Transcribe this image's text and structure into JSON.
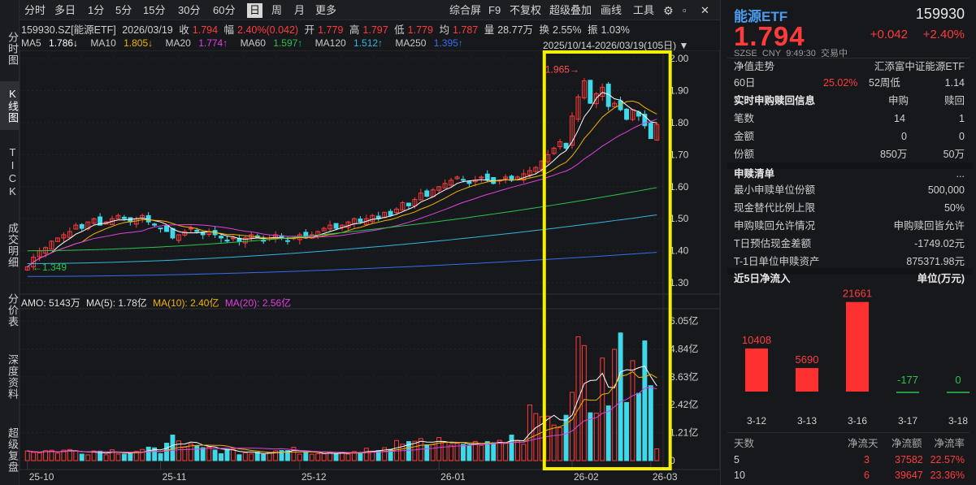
{
  "left_tabs": [
    "分时图",
    "K线图",
    "TICK",
    "成交明细",
    "分价表",
    "深度资料",
    "超级复盘"
  ],
  "toolbar": {
    "left": [
      "分时",
      "多日",
      "1分",
      "5分",
      "15分",
      "30分",
      "60分",
      "日",
      "周",
      "月",
      "更多"
    ],
    "right": [
      "综合屏",
      "F9",
      "不复权",
      "超级叠加",
      "画线",
      "工具"
    ],
    "selected": "日"
  },
  "quote_line": {
    "code": "159930.SZ[能源ETF]",
    "date": "2026/03/19",
    "close_label": "收",
    "close": "1.794",
    "change_label": "幅",
    "change": "2.40%(0.042)",
    "open_label": "开",
    "open": "1.779",
    "high_label": "高",
    "high": "1.797",
    "low_label": "低",
    "low": "1.779",
    "avg_label": "均",
    "avg": "1.787",
    "amount_label": "量",
    "amount": "28.77万",
    "turnover_label": "换",
    "turnover": "2.55%",
    "amplitude_label": "振",
    "amplitude": "1.03%"
  },
  "ma_line": [
    {
      "label": "MA5",
      "value": "1.786↓",
      "color": "#ffffff"
    },
    {
      "label": "MA10",
      "value": "1.805↓",
      "color": "#f0b400"
    },
    {
      "label": "MA20",
      "value": "1.774↑",
      "color": "#e040e0"
    },
    {
      "label": "MA60",
      "value": "1.597↑",
      "color": "#28c44c"
    },
    {
      "label": "MA120",
      "value": "1.512↑",
      "color": "#30b8d8"
    },
    {
      "label": "MA250",
      "value": "1.395↑",
      "color": "#3a6cf0"
    }
  ],
  "date_range": "2025/10/14-2026/03/19(105日)",
  "vol_line": {
    "amo": "AMO: 5143万",
    "ma5": "MA(5): 1.78亿",
    "ma10": "MA(10): 2.40亿",
    "ma20": "MA(20): 2.56亿"
  },
  "chart_data": [
    {
      "type": "candlestick",
      "title": "159930.SZ 能源ETF 日K",
      "x_axis_labels": [
        "25-10",
        "25-11",
        "25-12",
        "26-01",
        "26-02",
        "26-03"
      ],
      "y_axis_ticks": [
        "2.00",
        "1.90",
        "1.80",
        "1.70",
        "1.60",
        "1.50",
        "1.40",
        "1.30"
      ],
      "ylim": [
        1.27,
        2.02
      ],
      "annotations": {
        "high_marker": "1.965",
        "low_marker": "1.349"
      },
      "close_series": [
        1.35,
        1.38,
        1.4,
        1.41,
        1.43,
        1.44,
        1.45,
        1.46,
        1.48,
        1.47,
        1.49,
        1.5,
        1.48,
        1.49,
        1.5,
        1.51,
        1.5,
        1.49,
        1.5,
        1.51,
        1.49,
        1.48,
        1.47,
        1.46,
        1.44,
        1.45,
        1.46,
        1.47,
        1.46,
        1.45,
        1.46,
        1.45,
        1.44,
        1.43,
        1.44,
        1.43,
        1.44,
        1.45,
        1.44,
        1.43,
        1.44,
        1.45,
        1.44,
        1.43,
        1.44,
        1.45,
        1.44,
        1.45,
        1.46,
        1.47,
        1.48,
        1.47,
        1.48,
        1.49,
        1.5,
        1.49,
        1.5,
        1.51,
        1.5,
        1.52,
        1.51,
        1.53,
        1.55,
        1.54,
        1.56,
        1.58,
        1.57,
        1.59,
        1.6,
        1.61,
        1.62,
        1.63,
        1.62,
        1.61,
        1.62,
        1.63,
        1.62,
        1.61,
        1.62,
        1.63,
        1.62,
        1.63,
        1.64,
        1.65,
        1.66,
        1.68,
        1.7,
        1.72,
        1.74,
        1.72,
        1.82,
        1.88,
        1.93,
        1.86,
        1.89,
        1.91,
        1.85,
        1.86,
        1.84,
        1.81,
        1.84,
        1.82,
        1.79,
        1.75,
        1.794
      ]
    },
    {
      "type": "bar",
      "title": "AMO 成交额",
      "y_axis_ticks": [
        "6.05亿",
        "4.84亿",
        "3.63亿",
        "2.42亿",
        "1.21亿",
        "0"
      ],
      "ylim": [
        0,
        6.3
      ],
      "unit": "亿"
    },
    {
      "type": "bar",
      "title": "近5日净流入",
      "unit": "万元",
      "categories": [
        "3-12",
        "3-13",
        "3-16",
        "3-17",
        "3-18"
      ],
      "values": [
        10408,
        5690,
        21661,
        -177,
        0
      ]
    }
  ],
  "highlight_box_color": "#f5f000",
  "right": {
    "name": "能源ETF",
    "code": "159930",
    "price": "1.794",
    "change": "+0.042",
    "change_pct": "+2.40%",
    "meta": [
      "SZSE",
      "CNY",
      "9:49:30",
      "交易中"
    ],
    "nav_trend_label": "净值走势",
    "fund_company": "汇添富中证能源ETF",
    "d60_label": "60日",
    "d60_value": "25.02%",
    "w52_label": "52周低",
    "w52_value": "1.14",
    "realtime_title": "实时申购赎回信息",
    "col_purchase": "申购",
    "col_redeem": "赎回",
    "rt_rows": [
      {
        "label": "笔数",
        "purchase": "14",
        "redeem": "1"
      },
      {
        "label": "金额",
        "purchase": "0",
        "redeem": "0"
      },
      {
        "label": "份额",
        "purchase": "850万",
        "redeem": "50万"
      }
    ],
    "list_title": "申赎清单",
    "list_more": "...",
    "list_rows": [
      {
        "label": "最小申赎单位份额",
        "value": "500,000"
      },
      {
        "label": "现金替代比例上限",
        "value": "50%"
      },
      {
        "label": "申购赎回允许情况",
        "value": "申购赎回皆允许"
      },
      {
        "label": "T日预估现金差额",
        "value": "-1749.02元"
      },
      {
        "label": "T-1日单位申赎资产",
        "value": "875371.98元"
      }
    ],
    "flow_title": "近5日净流入",
    "flow_unit": "单位(万元)",
    "flow_labels": [
      "10408",
      "5690",
      "21661",
      "-177",
      "0"
    ],
    "table_headers": [
      "天数",
      "净流天",
      "净流额",
      "净流率"
    ],
    "table_rows": [
      [
        "5",
        "3",
        "37582",
        "22.57%"
      ],
      [
        "10",
        "6",
        "39647",
        "23.36%"
      ]
    ]
  }
}
